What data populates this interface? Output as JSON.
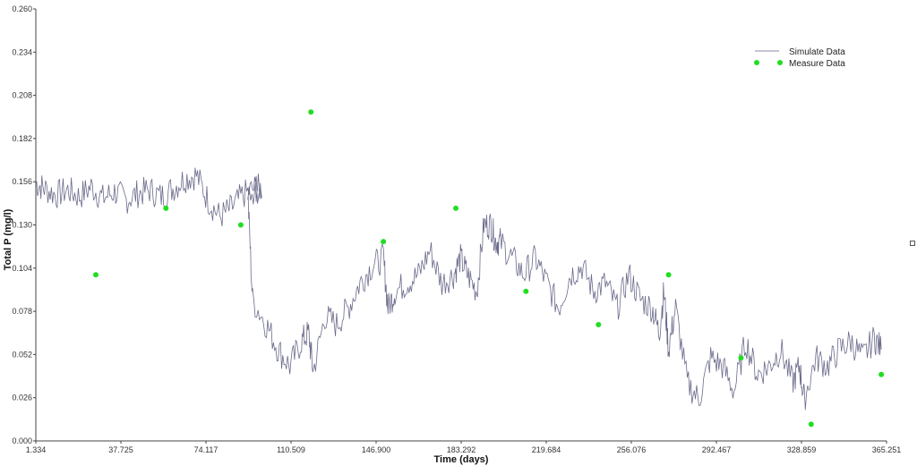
{
  "chart_data": {
    "type": "line",
    "title": "",
    "xlabel": "Time (days)",
    "ylabel": "Total P (mg/l)",
    "xlim": [
      1.334,
      365.251
    ],
    "ylim": [
      0.0,
      0.26
    ],
    "x_ticks": [
      "1.334",
      "37.725",
      "74.117",
      "110.509",
      "146.900",
      "183.292",
      "219.684",
      "256.076",
      "292.467",
      "328.859",
      "365.251"
    ],
    "y_ticks": [
      "0.000",
      "0.026",
      "0.052",
      "0.078",
      "0.104",
      "0.130",
      "0.156",
      "0.182",
      "0.208",
      "0.234",
      "0.260"
    ],
    "legend_position": "top-right",
    "grid": false,
    "series": [
      {
        "name": "Simulate Data",
        "kind": "line",
        "color": "#3a3a66",
        "x": [
          1.334,
          5,
          10,
          15,
          20,
          25,
          30,
          35,
          40,
          45,
          50,
          55,
          60,
          65,
          70,
          75,
          80,
          85,
          90,
          95,
          98,
          92,
          94,
          100,
          105,
          110,
          115,
          118,
          120,
          125,
          130,
          135,
          140,
          145,
          150,
          152,
          155,
          160,
          165,
          170,
          175,
          180,
          183,
          186,
          190,
          193,
          196,
          198,
          200,
          205,
          210,
          215,
          220,
          225,
          230,
          235,
          240,
          245,
          250,
          255,
          260,
          265,
          268,
          270,
          272,
          275,
          280,
          285,
          290,
          295,
          300,
          305,
          310,
          315,
          320,
          325,
          328,
          330,
          335,
          340,
          345,
          350,
          355,
          360,
          363
        ],
        "y": [
          0.155,
          0.152,
          0.148,
          0.151,
          0.147,
          0.153,
          0.146,
          0.15,
          0.145,
          0.149,
          0.151,
          0.147,
          0.152,
          0.158,
          0.16,
          0.145,
          0.135,
          0.14,
          0.148,
          0.152,
          0.152,
          0.15,
          0.085,
          0.07,
          0.055,
          0.045,
          0.06,
          0.065,
          0.042,
          0.075,
          0.07,
          0.08,
          0.095,
          0.105,
          0.11,
          0.08,
          0.09,
          0.095,
          0.1,
          0.115,
          0.095,
          0.1,
          0.11,
          0.1,
          0.09,
          0.13,
          0.13,
          0.12,
          0.12,
          0.11,
          0.1,
          0.11,
          0.095,
          0.08,
          0.1,
          0.105,
          0.09,
          0.095,
          0.08,
          0.1,
          0.085,
          0.08,
          0.065,
          0.09,
          0.055,
          0.08,
          0.035,
          0.025,
          0.05,
          0.045,
          0.03,
          0.06,
          0.04,
          0.045,
          0.055,
          0.035,
          0.045,
          0.025,
          0.05,
          0.045,
          0.055,
          0.06,
          0.05,
          0.062,
          0.055
        ]
      },
      {
        "name": "Measure Data",
        "kind": "scatter",
        "color": "#22dd22",
        "x": [
          27,
          57,
          89,
          119,
          150,
          181,
          211,
          242,
          272,
          303,
          333,
          363
        ],
        "y": [
          0.1,
          0.14,
          0.13,
          0.198,
          0.12,
          0.14,
          0.09,
          0.07,
          0.1,
          0.05,
          0.01,
          0.04
        ]
      }
    ]
  },
  "legend": {
    "simulate_label": "Simulate Data",
    "measure_label": "Measure Data"
  }
}
